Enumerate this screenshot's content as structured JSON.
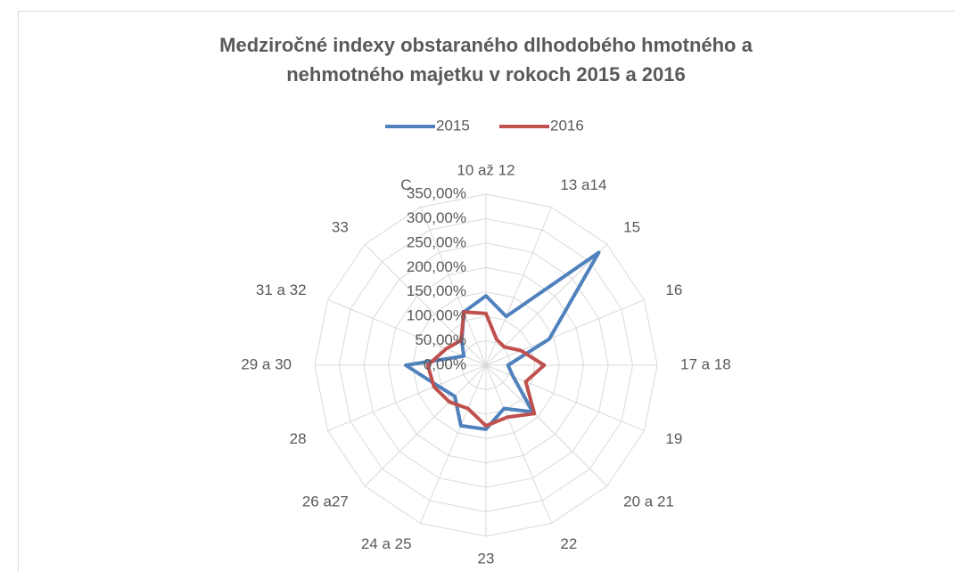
{
  "chart_data": {
    "type": "radar",
    "title": "Medziročné indexy obstaraného dlhodobého hmotného a nehmotného majetku v rokoch 2015 a 2016",
    "categories": [
      "10 až 12",
      "13 a14",
      "15",
      "16",
      "17 a 18",
      "19",
      "20 a 21",
      "22",
      "23",
      "24 a 25",
      "26 a27",
      "28",
      "29 a 30",
      "31 a 32",
      "33",
      "C"
    ],
    "series": [
      {
        "name": "2015",
        "color": "#4f81bd",
        "values": [
          142,
          108,
          326,
          140,
          45,
          60,
          135,
          96,
          131,
          134,
          90,
          108,
          164,
          49,
          70,
          118
        ]
      },
      {
        "name": "2016",
        "color": "#c0504d",
        "values": [
          106,
          57,
          53,
          78,
          119,
          88,
          140,
          115,
          124,
          96,
          106,
          115,
          119,
          88,
          72,
          118
        ]
      }
    ],
    "ylim": [
      0,
      350
    ],
    "yticks": [
      {
        "value": 0,
        "label": "0,00%"
      },
      {
        "value": 50,
        "label": "50,00%"
      },
      {
        "value": 100,
        "label": "100,00%"
      },
      {
        "value": 150,
        "label": "150,00%"
      },
      {
        "value": 200,
        "label": "200,00%"
      },
      {
        "value": 250,
        "label": "250,00%"
      },
      {
        "value": 300,
        "label": "300,00%"
      },
      {
        "value": 350,
        "label": "350,00%"
      }
    ],
    "grid": true,
    "legend": "top"
  }
}
